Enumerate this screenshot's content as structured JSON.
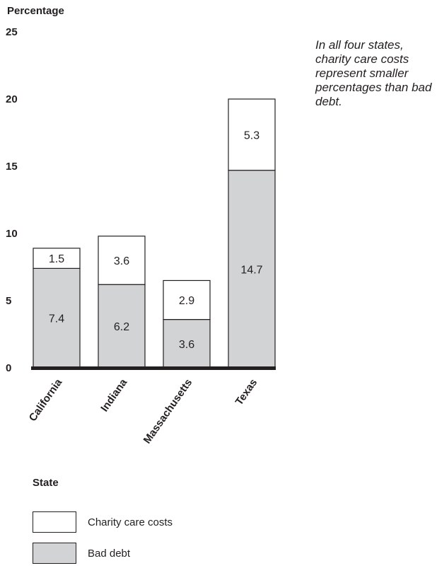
{
  "chart_data": {
    "type": "bar",
    "stacked": true,
    "ylabel": "Percentage",
    "xlabel": "State",
    "ylim": [
      0,
      25
    ],
    "yticks": [
      0,
      5,
      10,
      15,
      20,
      25
    ],
    "categories": [
      "California",
      "Indiana",
      "Massachusetts",
      "Texas"
    ],
    "series": [
      {
        "name": "Bad debt",
        "color": "#d1d3d4",
        "values": [
          7.4,
          6.2,
          3.6,
          14.7
        ],
        "labels": [
          "7.4",
          "6.2",
          "3.6",
          "14.7"
        ]
      },
      {
        "name": "Charity care costs",
        "color": "#ffffff",
        "values": [
          1.5,
          3.6,
          2.9,
          5.3
        ],
        "labels": [
          "1.5",
          "3.6",
          "2.9",
          "5.3"
        ]
      }
    ],
    "annotation": "In all four states, charity care costs represent smaller percentages than bad debt.",
    "legend": {
      "position": "bottom-left",
      "items": [
        {
          "label": "Charity care costs",
          "color": "#ffffff"
        },
        {
          "label": "Bad debt",
          "color": "#d1d3d4"
        }
      ]
    },
    "grid": false
  }
}
